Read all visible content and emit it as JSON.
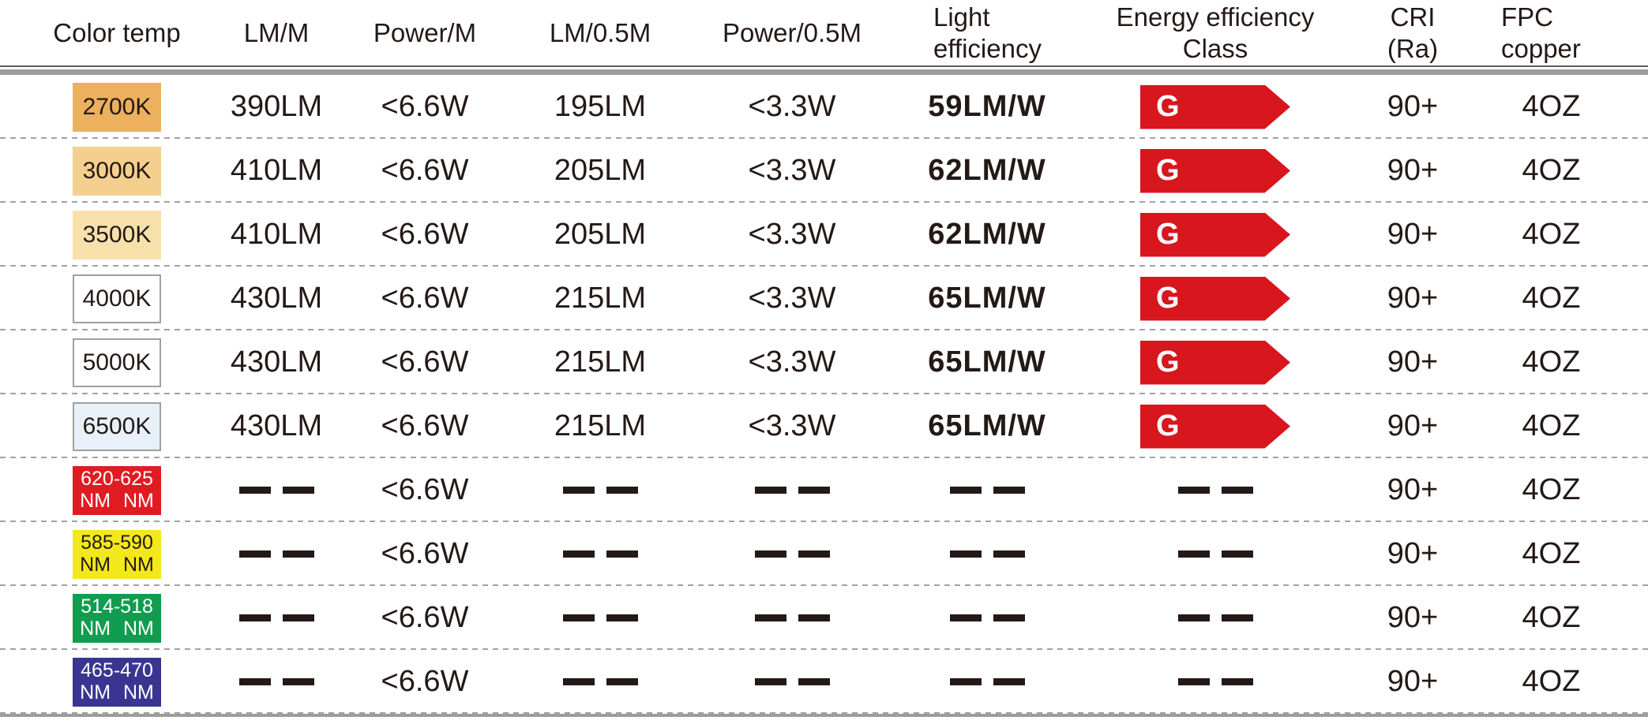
{
  "header": {
    "color_temp": "Color temp",
    "lm_m": "LM/M",
    "power_m": "Power/M",
    "lm_05m": "LM/0.5M",
    "power_05m": "Power/0.5M",
    "light_eff_line1": "Light",
    "light_eff_line2": "efficiency",
    "energy_line1": "Energy efficiency",
    "energy_line2": "Class",
    "cri_line1": "CRI",
    "cri_line2": "(Ra)",
    "fpc_line1": "FPC",
    "fpc_line2": "copper"
  },
  "badge": {
    "label": "G",
    "color": "#d7161e",
    "text_color": "#ffffff"
  },
  "no_data_symbol": "— —",
  "rows": [
    {
      "swatch": {
        "line1": "2700K",
        "line2": null,
        "bg": "#ecb05f",
        "text": "#231916"
      },
      "lm_m": "390LM",
      "power_m": "<6.6W",
      "lm_05m": "195LM",
      "power_05m": "<3.3W",
      "light_eff": "59LM/W",
      "energy": "G",
      "cri": "90+",
      "fpc": "4OZ"
    },
    {
      "swatch": {
        "line1": "3000K",
        "line2": null,
        "bg": "#f5cf8d",
        "text": "#231916"
      },
      "lm_m": "410LM",
      "power_m": "<6.6W",
      "lm_05m": "205LM",
      "power_05m": "<3.3W",
      "light_eff": "62LM/W",
      "energy": "G",
      "cri": "90+",
      "fpc": "4OZ"
    },
    {
      "swatch": {
        "line1": "3500K",
        "line2": null,
        "bg": "#f7e1ab",
        "text": "#231916"
      },
      "lm_m": "410LM",
      "power_m": "<6.6W",
      "lm_05m": "205LM",
      "power_05m": "<3.3W",
      "light_eff": "62LM/W",
      "energy": "G",
      "cri": "90+",
      "fpc": "4OZ"
    },
    {
      "swatch": {
        "line1": "4000K",
        "line2": null,
        "bg": "#ffffff",
        "text": "#231916"
      },
      "lm_m": "430LM",
      "power_m": "<6.6W",
      "lm_05m": "215LM",
      "power_05m": "<3.3W",
      "light_eff": "65LM/W",
      "energy": "G",
      "cri": "90+",
      "fpc": "4OZ"
    },
    {
      "swatch": {
        "line1": "5000K",
        "line2": null,
        "bg": "#ffffff",
        "text": "#231916"
      },
      "lm_m": "430LM",
      "power_m": "<6.6W",
      "lm_05m": "215LM",
      "power_05m": "<3.3W",
      "light_eff": "65LM/W",
      "energy": "G",
      "cri": "90+",
      "fpc": "4OZ"
    },
    {
      "swatch": {
        "line1": "6500K",
        "line2": null,
        "bg": "#e8f1f9",
        "text": "#231916"
      },
      "lm_m": "430LM",
      "power_m": "<6.6W",
      "lm_05m": "215LM",
      "power_05m": "<3.3W",
      "light_eff": "65LM/W",
      "energy": "G",
      "cri": "90+",
      "fpc": "4OZ"
    },
    {
      "swatch": {
        "line1": "620-625",
        "line2": "NM NM",
        "bg": "#e01b22",
        "text": "#ffffff"
      },
      "lm_m": "— —",
      "power_m": "<6.6W",
      "lm_05m": "— —",
      "power_05m": "— —",
      "light_eff": "— —",
      "energy": "— —",
      "cri": "90+",
      "fpc": "4OZ"
    },
    {
      "swatch": {
        "line1": "585-590",
        "line2": "NM NM",
        "bg": "#f3e81c",
        "text": "#231916"
      },
      "lm_m": "— —",
      "power_m": "<6.6W",
      "lm_05m": "— —",
      "power_05m": "— —",
      "light_eff": "— —",
      "energy": "— —",
      "cri": "90+",
      "fpc": "4OZ"
    },
    {
      "swatch": {
        "line1": "514-518",
        "line2": "NM NM",
        "bg": "#129c50",
        "text": "#ffffff"
      },
      "lm_m": "— —",
      "power_m": "<6.6W",
      "lm_05m": "— —",
      "power_05m": "— —",
      "light_eff": "— —",
      "energy": "— —",
      "cri": "90+",
      "fpc": "4OZ"
    },
    {
      "swatch": {
        "line1": "465-470",
        "line2": "NM NM",
        "bg": "#3a3591",
        "text": "#ffffff"
      },
      "lm_m": "— —",
      "power_m": "<6.6W",
      "lm_05m": "— —",
      "power_05m": "— —",
      "light_eff": "— —",
      "energy": "— —",
      "cri": "90+",
      "fpc": "4OZ"
    }
  ]
}
